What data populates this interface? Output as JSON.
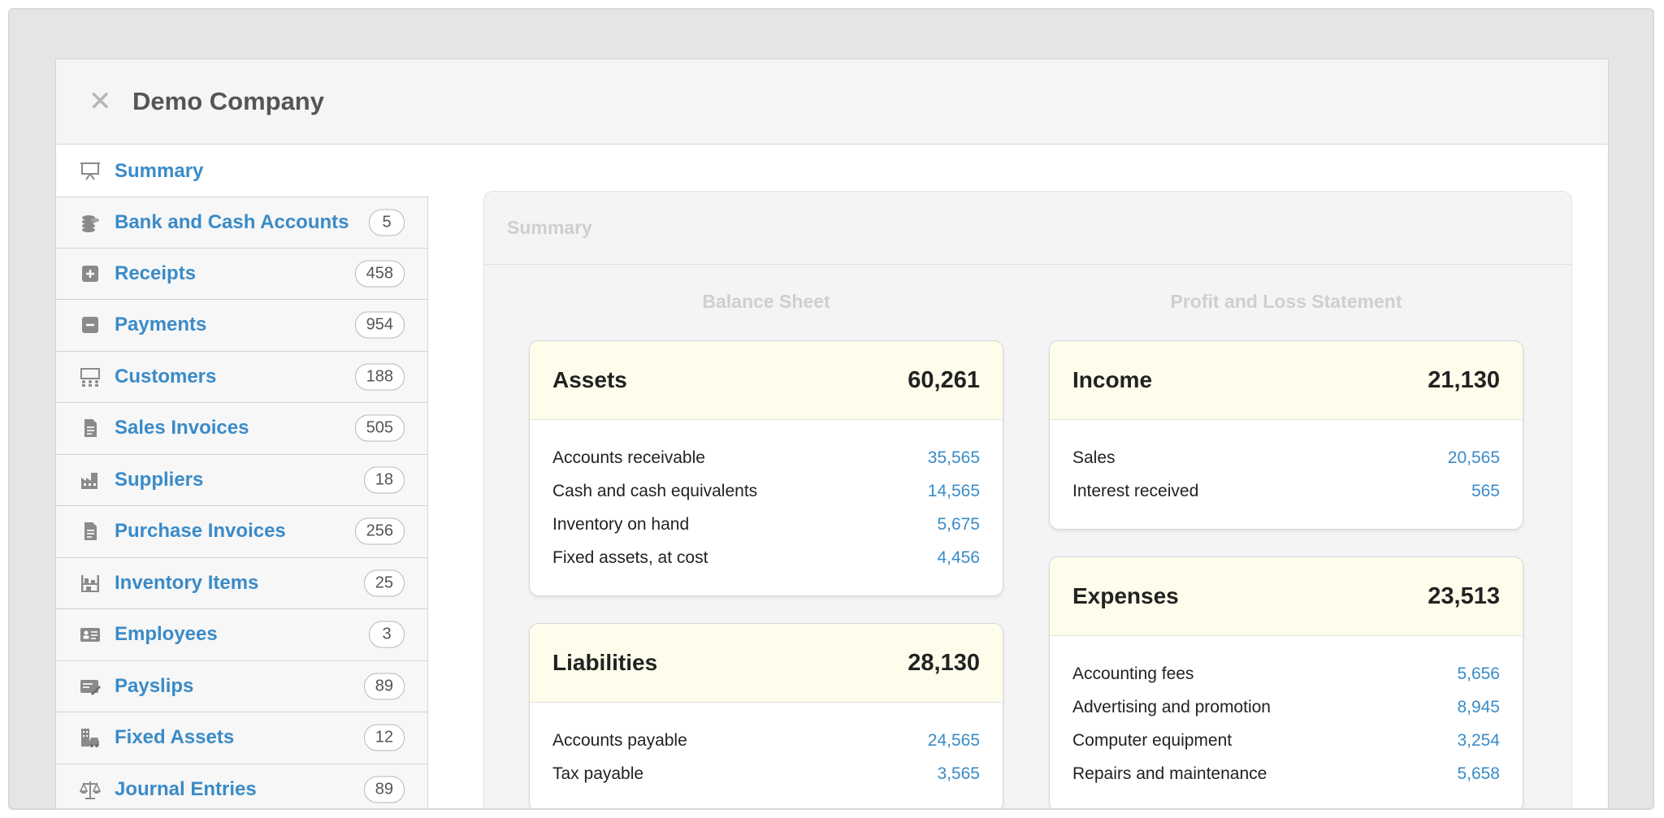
{
  "header": {
    "close_symbol": "✕",
    "company": "Demo Company"
  },
  "sidebar": {
    "summary": {
      "label": "Summary",
      "icon": "presentation-icon"
    },
    "items": [
      {
        "label": "Bank and Cash Accounts",
        "count": "5",
        "icon": "coins-icon"
      },
      {
        "label": "Receipts",
        "count": "458",
        "icon": "plus-square-icon"
      },
      {
        "label": "Payments",
        "count": "954",
        "icon": "minus-square-icon"
      },
      {
        "label": "Customers",
        "count": "188",
        "icon": "customers-icon"
      },
      {
        "label": "Sales Invoices",
        "count": "505",
        "icon": "document-icon"
      },
      {
        "label": "Suppliers",
        "count": "18",
        "icon": "factory-icon"
      },
      {
        "label": "Purchase Invoices",
        "count": "256",
        "icon": "document-icon"
      },
      {
        "label": "Inventory Items",
        "count": "25",
        "icon": "shelf-icon"
      },
      {
        "label": "Employees",
        "count": "3",
        "icon": "id-card-icon"
      },
      {
        "label": "Payslips",
        "count": "89",
        "icon": "payslip-icon"
      },
      {
        "label": "Fixed Assets",
        "count": "12",
        "icon": "building-car-icon"
      },
      {
        "label": "Journal Entries",
        "count": "89",
        "icon": "scales-icon"
      }
    ]
  },
  "main": {
    "panel_title": "Summary",
    "balance_sheet_title": "Balance Sheet",
    "pl_title": "Profit and Loss Statement",
    "assets": {
      "title": "Assets",
      "total": "60,261",
      "rows": [
        {
          "label": "Accounts receivable",
          "value": "35,565"
        },
        {
          "label": "Cash and cash equivalents",
          "value": "14,565"
        },
        {
          "label": "Inventory on hand",
          "value": "5,675"
        },
        {
          "label": "Fixed assets, at cost",
          "value": "4,456"
        }
      ]
    },
    "liabilities": {
      "title": "Liabilities",
      "total": "28,130",
      "rows": [
        {
          "label": "Accounts payable",
          "value": "24,565"
        },
        {
          "label": "Tax payable",
          "value": "3,565"
        }
      ]
    },
    "income": {
      "title": "Income",
      "total": "21,130",
      "rows": [
        {
          "label": "Sales",
          "value": "20,565"
        },
        {
          "label": "Interest received",
          "value": "565"
        }
      ]
    },
    "expenses": {
      "title": "Expenses",
      "total": "23,513",
      "rows": [
        {
          "label": "Accounting fees",
          "value": "5,656"
        },
        {
          "label": "Advertising and promotion",
          "value": "8,945"
        },
        {
          "label": "Computer equipment",
          "value": "3,254"
        },
        {
          "label": "Repairs and maintenance",
          "value": "5,658"
        }
      ]
    }
  },
  "colors": {
    "link": "#3a8bc8",
    "card_header": "#fefdec",
    "muted": "#cfcfcf"
  }
}
